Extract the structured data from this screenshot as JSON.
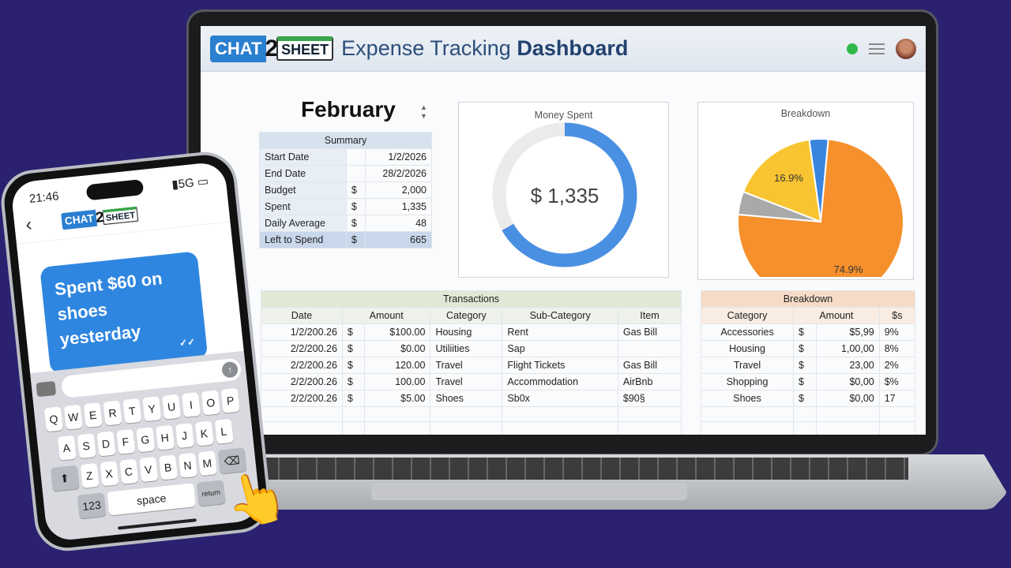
{
  "header": {
    "logo": {
      "chat": "CHAT",
      "two": "2",
      "sheet": "SHEET"
    },
    "title_light": "Expense Tracking",
    "title_bold": "Dashboard",
    "icons": [
      "status-dot-icon",
      "menu-icon",
      "avatar"
    ]
  },
  "month": "February",
  "summary": {
    "title": "Summary",
    "rows": [
      {
        "label": "Start Date",
        "cur": "",
        "value": "1/2/2026"
      },
      {
        "label": "End Date",
        "cur": "",
        "value": "28/2/2026"
      },
      {
        "label": "Budget",
        "cur": "$",
        "value": "2,000"
      },
      {
        "label": "Spent",
        "cur": "$",
        "value": "1,335"
      },
      {
        "label": "Daily Average",
        "cur": "$",
        "value": "48"
      },
      {
        "label": "Left to Spend",
        "cur": "$",
        "value": "665"
      }
    ]
  },
  "money_spent": {
    "title": "Money Spent",
    "value_label": "$ 1,335",
    "spent": 1335,
    "budget": 2000,
    "colors": {
      "spent": "#4a90e2",
      "remaining": "#ebebeb"
    }
  },
  "breakdown_chart": {
    "title": "Breakdown",
    "slices": [
      {
        "value": 3.7,
        "color": "#3a85dd",
        "label": ""
      },
      {
        "value": 74.9,
        "color": "#f5902c",
        "label": "74.9%"
      },
      {
        "value": 4.5,
        "color": "#a9a9a9",
        "label": ""
      },
      {
        "value": 16.9,
        "color": "#f8c431",
        "label": "16.9%"
      }
    ]
  },
  "transactions": {
    "title": "Transactions",
    "columns": [
      "Date",
      "Amount",
      "Category",
      "Sub-Category",
      "Item"
    ],
    "rows": [
      [
        "1/2/200.26",
        "$",
        "$100.00",
        "Housing",
        "Rent",
        "Gas Bill"
      ],
      [
        "2/2/200.26",
        "$",
        "$0.00",
        "Utiliities",
        "Sap",
        ""
      ],
      [
        "2/2/200.26",
        "$",
        "120.00",
        "Travel",
        "Flight Tickets",
        "Gas Bill"
      ],
      [
        "2/2/200.26",
        "$",
        "100.00",
        "Travel",
        "Accommodation",
        "AirBnb"
      ],
      [
        "2/2/200.26",
        "$",
        "$5.00",
        "Shoes",
        "Sb0x",
        "$90§"
      ]
    ]
  },
  "breakdown": {
    "title": "Breakdown",
    "columns": [
      "Category",
      "Amount",
      "$s"
    ],
    "rows": [
      [
        "Accessories",
        "$",
        "$5,99",
        "9%"
      ],
      [
        "Housing",
        "$",
        "1,00,00",
        "8%"
      ],
      [
        "Travel",
        "$",
        "23,00",
        "2%"
      ],
      [
        "Shopping",
        "$",
        "$0,00",
        "$%"
      ],
      [
        "Shoes",
        "$",
        "$0,00",
        "17"
      ]
    ]
  },
  "phone": {
    "time": "21:46",
    "signal": "5G",
    "message": "Spent $60 on shoes yesterday",
    "ticks": "✓✓",
    "keyboard": {
      "row1": [
        "Q",
        "W",
        "E",
        "R",
        "T",
        "Y",
        "U",
        "I",
        "O",
        "P"
      ],
      "row2": [
        "A",
        "S",
        "D",
        "F",
        "G",
        "H",
        "J",
        "K",
        "L"
      ],
      "row3": [
        "Z",
        "X",
        "C",
        "V",
        "B",
        "N",
        "M"
      ],
      "shift": "⬆",
      "delete": "⌫",
      "numbers": "123",
      "space": "space",
      "return": "return"
    }
  }
}
